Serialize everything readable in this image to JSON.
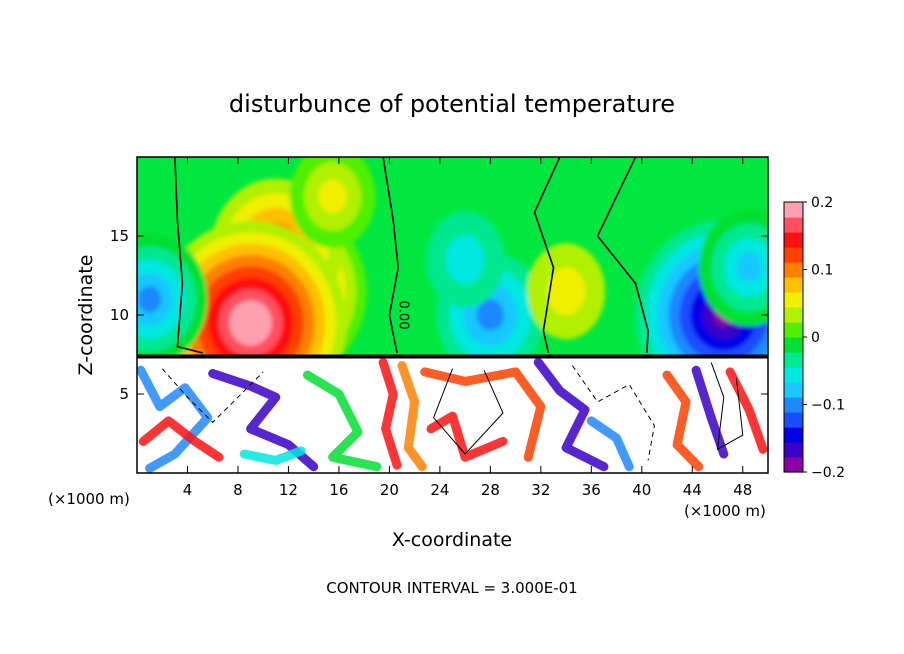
{
  "chart_data": {
    "type": "heatmap",
    "title": "disturbunce of potential temperature",
    "xlabel": "X-coordinate",
    "ylabel": "Z-coordinate",
    "x_unit_left": "(×1000 m)",
    "x_unit_right": "(×1000 m)",
    "xlim": [
      0,
      50
    ],
    "ylim": [
      0,
      20
    ],
    "x_ticks": [
      4,
      8,
      12,
      16,
      20,
      24,
      28,
      32,
      36,
      40,
      44,
      48
    ],
    "y_ticks": [
      5,
      10,
      15
    ],
    "contour_label": "0.00",
    "footer": "CONTOUR INTERVAL = 3.000E-01",
    "colorbar": {
      "range": [
        -0.2,
        0.2
      ],
      "tick_values": [
        -0.2,
        -0.1,
        0,
        0.1,
        0.2
      ],
      "tick_labels": [
        "−0.2",
        "−0.1",
        "0",
        "0.1",
        "0.2"
      ],
      "colors": [
        "#8b00a8",
        "#3a00c8",
        "#0000e8",
        "#1a4cff",
        "#1e88ff",
        "#18c8ff",
        "#00e8e0",
        "#00e890",
        "#00e030",
        "#50f000",
        "#b0f000",
        "#f0f000",
        "#ffc000",
        "#ff8000",
        "#ff4000",
        "#ff1010",
        "#ff5060",
        "#ffa0b0"
      ]
    },
    "upper_layer_blobs": [
      {
        "x": 11.5,
        "z": 11.5,
        "value": 0.17
      },
      {
        "x": 11.0,
        "z": 14.0,
        "value": 0.12
      },
      {
        "x": 9.0,
        "z": 9.5,
        "value": 0.2
      },
      {
        "x": 28.0,
        "z": 10.0,
        "value": -0.09
      },
      {
        "x": 26.0,
        "z": 13.5,
        "value": -0.05
      },
      {
        "x": 34.0,
        "z": 11.5,
        "value": 0.05
      },
      {
        "x": 46.5,
        "z": 10.0,
        "value": -0.18
      },
      {
        "x": 48.5,
        "z": 13.0,
        "value": -0.08
      },
      {
        "x": 1.0,
        "z": 11.0,
        "value": -0.1
      },
      {
        "x": 15.5,
        "z": 17.5,
        "value": 0.06
      }
    ]
  }
}
